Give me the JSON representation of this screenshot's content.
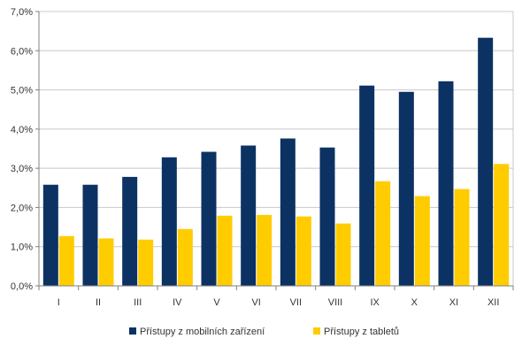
{
  "chart_data": {
    "type": "bar",
    "categories": [
      "I",
      "II",
      "III",
      "IV",
      "V",
      "VI",
      "VII",
      "VIII",
      "IX",
      "X",
      "XI",
      "XII"
    ],
    "series": [
      {
        "name": "Přístupy z mobilních zařízení",
        "color": "#0c3263",
        "values": [
          2.58,
          2.58,
          2.78,
          3.28,
          3.42,
          3.58,
          3.76,
          3.53,
          5.11,
          4.95,
          5.22,
          6.33
        ]
      },
      {
        "name": "Přístupy z tabletů",
        "color": "#ffcc00",
        "values": [
          1.27,
          1.21,
          1.18,
          1.45,
          1.79,
          1.81,
          1.77,
          1.59,
          2.67,
          2.29,
          2.47,
          3.11
        ]
      }
    ],
    "y_ticks": [
      "0,0%",
      "1,0%",
      "2,0%",
      "3,0%",
      "4,0%",
      "5,0%",
      "6,0%",
      "7,0%"
    ],
    "ylim": [
      0,
      7
    ],
    "grid": true,
    "legend_position": "bottom"
  }
}
